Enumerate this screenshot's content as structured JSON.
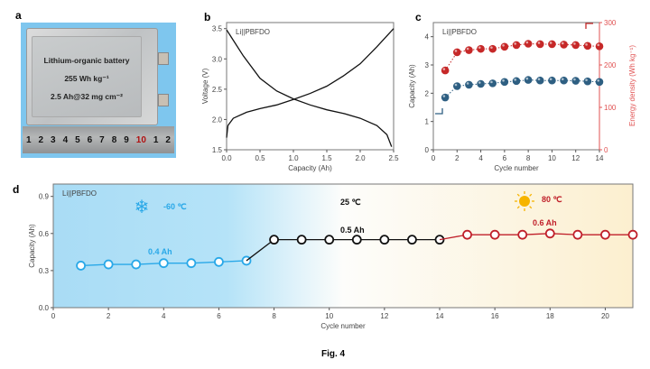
{
  "panels": {
    "a": "a",
    "b": "b",
    "c": "c",
    "d": "d"
  },
  "figure_caption": "Fig. 4",
  "photo": {
    "line1": "Lithium-organic battery",
    "line2": "255 Wh kg⁻¹",
    "line3": "2.5 Ah@32 mg cm⁻²",
    "ruler": [
      "1",
      "2",
      "3",
      "4",
      "5",
      "6",
      "7",
      "8",
      "9",
      "10",
      "1",
      "2"
    ]
  },
  "chart_data": [
    {
      "type": "line",
      "panel": "b",
      "annotation": "Li||PBFDO",
      "xlabel": "Capacity (Ah)",
      "ylabel": "Voltage (V)",
      "xlim": [
        0,
        2.5
      ],
      "ylim": [
        1.5,
        3.6
      ],
      "xticks": [
        "0.0",
        "0.5",
        "1.0",
        "1.5",
        "2.0",
        "2.5"
      ],
      "yticks": [
        "1.5",
        "2.0",
        "2.5",
        "3.0",
        "3.5"
      ],
      "color": "#111111",
      "series": [
        {
          "x": [
            0,
            0.02,
            0.1,
            0.3,
            0.5,
            0.75,
            1.0,
            1.25,
            1.5,
            1.75,
            2.0,
            2.25,
            2.5
          ],
          "y": [
            1.7,
            1.9,
            2.02,
            2.12,
            2.18,
            2.24,
            2.33,
            2.43,
            2.55,
            2.72,
            2.92,
            3.2,
            3.5
          ]
        },
        {
          "x": [
            0,
            0.25,
            0.5,
            0.75,
            1.0,
            1.25,
            1.5,
            1.75,
            2.0,
            2.25,
            2.4,
            2.47
          ],
          "y": [
            3.48,
            3.05,
            2.68,
            2.47,
            2.34,
            2.24,
            2.16,
            2.1,
            2.02,
            1.9,
            1.75,
            1.55
          ]
        }
      ]
    },
    {
      "type": "scatter",
      "panel": "c",
      "annotation": "Li||PBFDO",
      "xlabel": "Cycle number",
      "ylabel": "Capacity (Ah)",
      "y2label": "Energy density (Wh kg⁻¹)",
      "xlim": [
        0,
        14
      ],
      "ylim": [
        0,
        4.5
      ],
      "y2lim": [
        0,
        300
      ],
      "xticks": [
        "0",
        "2",
        "4",
        "6",
        "8",
        "10",
        "12",
        "14"
      ],
      "yticks": [
        "0",
        "1",
        "2",
        "3",
        "4"
      ],
      "y2ticks": [
        "0",
        "100",
        "200",
        "300"
      ],
      "x": [
        1,
        2,
        3,
        4,
        5,
        6,
        7,
        8,
        9,
        10,
        11,
        12,
        13,
        14
      ],
      "series": [
        {
          "axis": "left",
          "color": "#2e5f82",
          "values": [
            1.85,
            2.25,
            2.3,
            2.33,
            2.35,
            2.4,
            2.43,
            2.47,
            2.45,
            2.45,
            2.45,
            2.44,
            2.42,
            2.4
          ]
        },
        {
          "axis": "right",
          "color": "#c62828",
          "values": [
            187,
            230,
            235,
            238,
            238,
            243,
            247,
            250,
            249,
            249,
            248,
            247,
            245,
            244
          ]
        }
      ]
    },
    {
      "type": "line",
      "panel": "d",
      "annotation": "Li||PBFDO",
      "xlabel": "Cycle number",
      "ylabel": "Capacity (Ah)",
      "xlim": [
        0,
        21
      ],
      "ylim": [
        0,
        1.0
      ],
      "xticks": [
        "0",
        "2",
        "4",
        "6",
        "8",
        "10",
        "12",
        "14",
        "16",
        "18",
        "20"
      ],
      "yticks": [
        "0.0",
        "0.3",
        "0.6",
        "0.9"
      ],
      "series": [
        {
          "label": "-60 ℃",
          "value_label": "0.4 Ah",
          "icon": "snowflake",
          "color": "#29a8e8",
          "x": [
            1,
            2,
            3,
            4,
            5,
            6,
            7
          ],
          "values": [
            0.34,
            0.35,
            0.35,
            0.36,
            0.36,
            0.37,
            0.38
          ]
        },
        {
          "label": "25 ℃",
          "value_label": "0.5 Ah",
          "color": "#111111",
          "x": [
            8,
            9,
            10,
            11,
            12,
            13,
            14
          ],
          "values": [
            0.55,
            0.55,
            0.55,
            0.55,
            0.55,
            0.55,
            0.55
          ]
        },
        {
          "label": "80 ℃",
          "value_label": "0.6 Ah",
          "icon": "sun",
          "color": "#c0202a",
          "x": [
            15,
            16,
            17,
            18,
            19,
            20,
            21
          ],
          "values": [
            0.59,
            0.59,
            0.59,
            0.6,
            0.59,
            0.59,
            0.59
          ]
        }
      ]
    }
  ]
}
